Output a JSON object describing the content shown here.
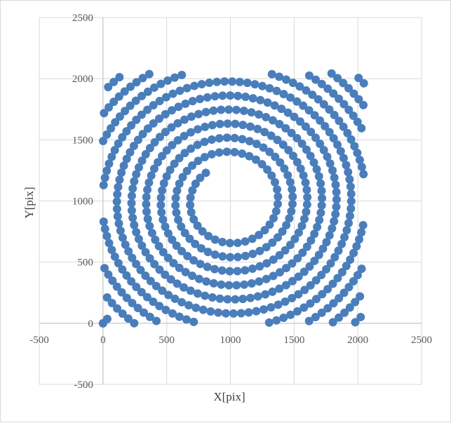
{
  "chart_data": {
    "type": "scatter",
    "title": "",
    "xlabel": "X[pix]",
    "ylabel": "Y[pix]",
    "xlim": [
      -500,
      2500
    ],
    "ylim": [
      -500,
      2500
    ],
    "xticks": [
      -500,
      0,
      500,
      1000,
      1500,
      2000,
      2500
    ],
    "yticks": [
      -500,
      0,
      500,
      1000,
      1500,
      2000,
      2500
    ],
    "grid": true,
    "legend": "none",
    "marker_color": "#4a7ebb",
    "series": [
      {
        "description": "Archimedean spiral centered at (1000,1000), starting radius ~300 at angle ~130°, pitch ~115 per turn, extending to the canvas edges, clipped to x,y in [0,2048]",
        "center": [
          1000,
          1000
        ],
        "r_start": 300,
        "pitch": 115,
        "theta_start_deg": 130,
        "theta_end_deg": 3800,
        "step_deg_start": 6,
        "clip": [
          0,
          2048
        ],
        "extra_points": [
          [
            0,
            0
          ],
          [
            0,
            0
          ]
        ]
      }
    ]
  }
}
